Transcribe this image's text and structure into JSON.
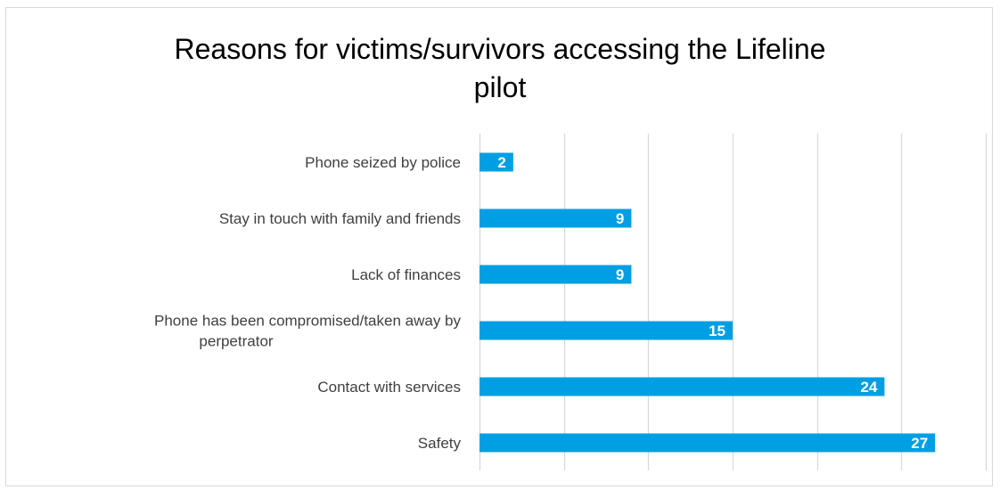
{
  "chart_data": {
    "type": "bar",
    "orientation": "horizontal",
    "title_lines": [
      "Reasons for victims/survivors accessing the Lifeline",
      "pilot"
    ],
    "categories": [
      [
        "Phone seized by police"
      ],
      [
        "Stay in touch with family and friends"
      ],
      [
        "Lack of finances"
      ],
      [
        "Phone has been compromised/taken away by",
        "perpetrator"
      ],
      [
        "Contact with services"
      ],
      [
        "Safety"
      ]
    ],
    "values": [
      2,
      9,
      9,
      15,
      24,
      27
    ],
    "xlim": [
      0,
      30
    ],
    "x_gridlines": [
      0,
      5,
      10,
      15,
      20,
      25,
      30
    ],
    "x_tick_labels_shown": false,
    "grid": true,
    "legend": "none",
    "bar_color": "#009fe3",
    "data_label_color": "#ffffff"
  }
}
